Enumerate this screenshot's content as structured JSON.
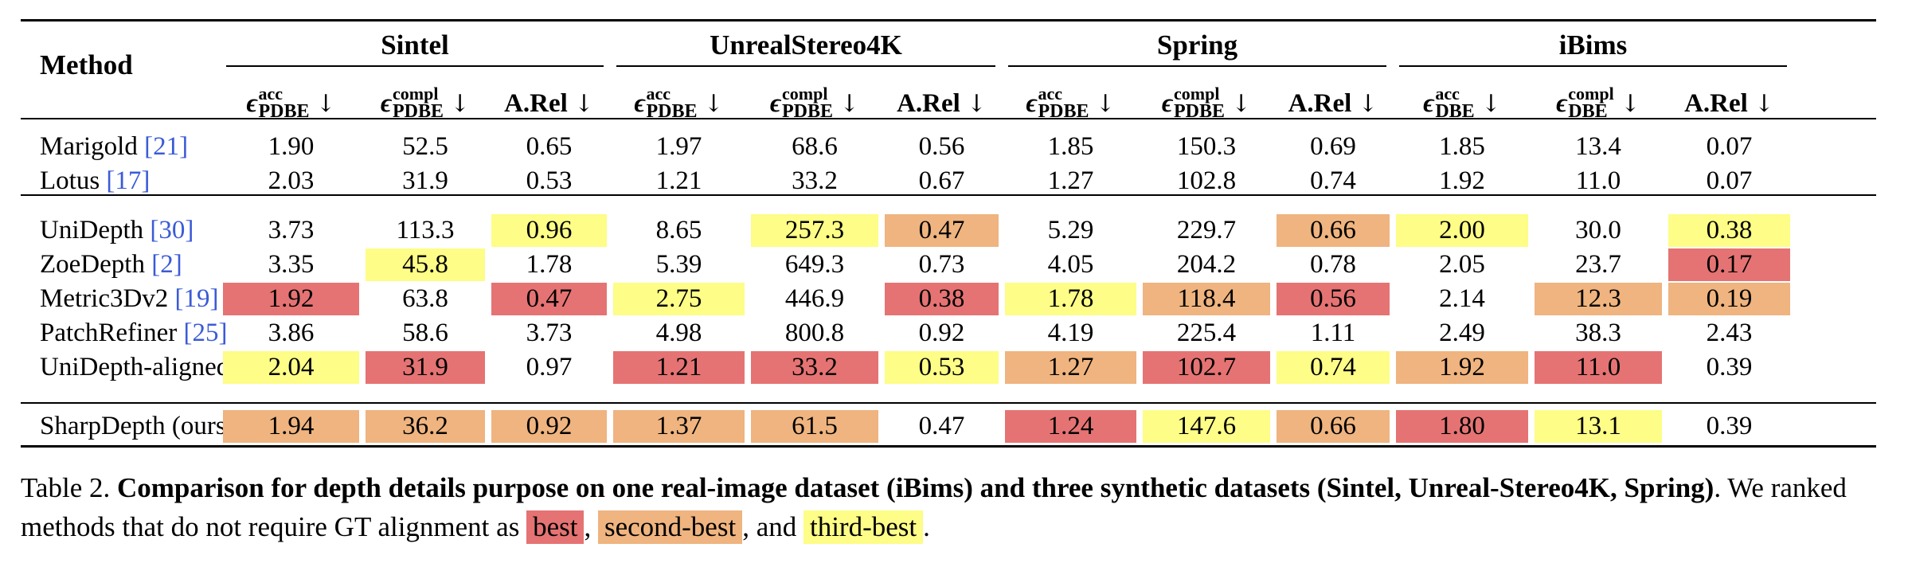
{
  "table": {
    "method_header": "Method",
    "groups": [
      {
        "name": "Sintel"
      },
      {
        "name": "UnrealStereo4K"
      },
      {
        "name": "Spring"
      },
      {
        "name": "iBims"
      }
    ],
    "column_headers": [
      {
        "kind": "eps",
        "sup": "acc",
        "sub": "PDBE"
      },
      {
        "kind": "eps",
        "sup": "compl",
        "sub": "PDBE"
      },
      {
        "kind": "text",
        "text": "A.Rel"
      },
      {
        "kind": "eps",
        "sup": "acc",
        "sub": "PDBE"
      },
      {
        "kind": "eps",
        "sup": "compl",
        "sub": "PDBE"
      },
      {
        "kind": "text",
        "text": "A.Rel"
      },
      {
        "kind": "eps",
        "sup": "acc",
        "sub": "PDBE"
      },
      {
        "kind": "eps",
        "sup": "compl",
        "sub": "PDBE"
      },
      {
        "kind": "text",
        "text": "A.Rel"
      },
      {
        "kind": "eps",
        "sup": "acc",
        "sub": "DBE"
      },
      {
        "kind": "eps",
        "sup": "compl",
        "sub": "DBE"
      },
      {
        "kind": "text",
        "text": "A.Rel"
      }
    ],
    "epsilon_symbol": "ϵ",
    "arrow_symbol": "↓",
    "rows": [
      {
        "method": "Marigold",
        "cite": "[21]",
        "values": [
          "1.90",
          "52.5",
          "0.65",
          "1.97",
          "68.6",
          "0.56",
          "1.85",
          "150.3",
          "0.69",
          "1.85",
          "13.4",
          "0.07"
        ],
        "ranks": [
          0,
          0,
          0,
          0,
          0,
          0,
          0,
          0,
          0,
          0,
          0,
          0
        ]
      },
      {
        "method": "Lotus",
        "cite": "[17]",
        "values": [
          "2.03",
          "31.9",
          "0.53",
          "1.21",
          "33.2",
          "0.67",
          "1.27",
          "102.8",
          "0.74",
          "1.92",
          "11.0",
          "0.07"
        ],
        "ranks": [
          0,
          0,
          0,
          0,
          0,
          0,
          0,
          0,
          0,
          0,
          0,
          0
        ]
      },
      {
        "method": "UniDepth",
        "cite": "[30]",
        "values": [
          "3.73",
          "113.3",
          "0.96",
          "8.65",
          "257.3",
          "0.47",
          "5.29",
          "229.7",
          "0.66",
          "2.00",
          "30.0",
          "0.38"
        ],
        "ranks": [
          0,
          0,
          3,
          0,
          3,
          2,
          0,
          0,
          2,
          3,
          0,
          3
        ]
      },
      {
        "method": "ZoeDepth",
        "cite": "[2]",
        "values": [
          "3.35",
          "45.8",
          "1.78",
          "5.39",
          "649.3",
          "0.73",
          "4.05",
          "204.2",
          "0.78",
          "2.05",
          "23.7",
          "0.17"
        ],
        "ranks": [
          0,
          3,
          0,
          0,
          0,
          0,
          0,
          0,
          0,
          0,
          0,
          1
        ]
      },
      {
        "method": "Metric3Dv2",
        "cite": "[19]",
        "values": [
          "1.92",
          "63.8",
          "0.47",
          "2.75",
          "446.9",
          "0.38",
          "1.78",
          "118.4",
          "0.56",
          "2.14",
          "12.3",
          "0.19"
        ],
        "ranks": [
          1,
          0,
          1,
          3,
          0,
          1,
          3,
          2,
          1,
          0,
          2,
          2
        ]
      },
      {
        "method": "PatchRefiner",
        "cite": "[25]",
        "values": [
          "3.86",
          "58.6",
          "3.73",
          "4.98",
          "800.8",
          "0.92",
          "4.19",
          "225.4",
          "1.11",
          "2.49",
          "38.3",
          "2.43"
        ],
        "ranks": [
          0,
          0,
          0,
          0,
          0,
          0,
          0,
          0,
          0,
          0,
          0,
          0
        ]
      },
      {
        "method": "UniDepth-aligned Lotus",
        "cite": "",
        "values": [
          "2.04",
          "31.9",
          "0.97",
          "1.21",
          "33.2",
          "0.53",
          "1.27",
          "102.7",
          "0.74",
          "1.92",
          "11.0",
          "0.39"
        ],
        "ranks": [
          3,
          1,
          0,
          1,
          1,
          3,
          2,
          1,
          3,
          2,
          1,
          0
        ]
      },
      {
        "method": "SharpDepth (ours)",
        "cite": "",
        "values": [
          "1.94",
          "36.2",
          "0.92",
          "1.37",
          "61.5",
          "0.47",
          "1.24",
          "147.6",
          "0.66",
          "1.80",
          "13.1",
          "0.39"
        ],
        "ranks": [
          2,
          2,
          2,
          2,
          2,
          0,
          1,
          3,
          2,
          1,
          3,
          0
        ]
      }
    ]
  },
  "caption": {
    "label": "Table 2.",
    "bold_text": "Comparison for depth details purpose on one real-image dataset (iBims) and three synthetic datasets (Sintel, Unreal-Stereo4K, Spring)",
    "after_bold": ". We ranked methods that do not require GT alignment as",
    "best": "best",
    "sep1": ",",
    "second": "second-best",
    "sep2": ", and",
    "third": "third-best",
    "end": "."
  },
  "colors": {
    "best": "#e57373",
    "second_best": "#efb47f",
    "third_best": "#fdfd87",
    "citation": "#3b5bd6"
  }
}
